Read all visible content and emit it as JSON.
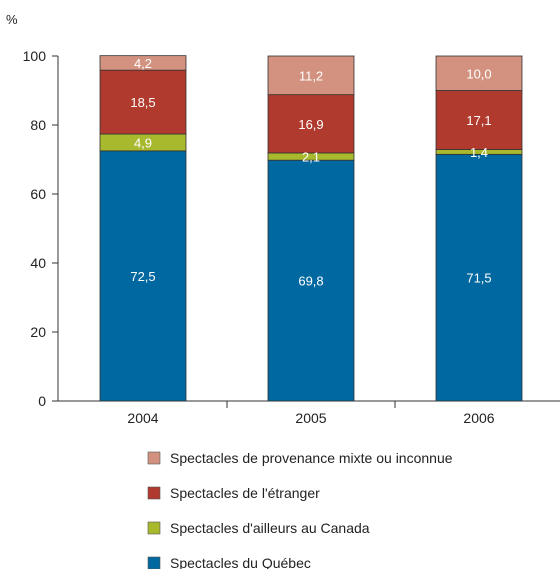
{
  "chart_data": {
    "type": "bar",
    "stacked": true,
    "unit": "%",
    "categories": [
      "2004",
      "2005",
      "2006"
    ],
    "ylim": [
      0,
      100
    ],
    "yticks": [
      0,
      20,
      40,
      60,
      80,
      100
    ],
    "grid": false,
    "legend_position": "bottom",
    "series": [
      {
        "name": "Spectacles du Québec",
        "color": "#0068a0",
        "values": [
          72.5,
          69.8,
          71.5
        ],
        "labels": [
          "72,5",
          "69,8",
          "71,5"
        ]
      },
      {
        "name": "Spectacles d'ailleurs au Canada",
        "color": "#a8b92e",
        "values": [
          4.9,
          2.1,
          1.4
        ],
        "labels": [
          "4,9",
          "2,1",
          "1,4"
        ]
      },
      {
        "name": "Spectacles de l'étranger",
        "color": "#b03a2e",
        "values": [
          18.5,
          16.9,
          17.1
        ],
        "labels": [
          "18,5",
          "16,9",
          "17,1"
        ]
      },
      {
        "name": "Spectacles de provenance mixte ou inconnue",
        "color": "#d2927f",
        "values": [
          4.2,
          11.2,
          10.0
        ],
        "labels": [
          "4,2",
          "11,2",
          "10,0"
        ]
      }
    ],
    "legend_order": [
      3,
      2,
      1,
      0
    ]
  }
}
